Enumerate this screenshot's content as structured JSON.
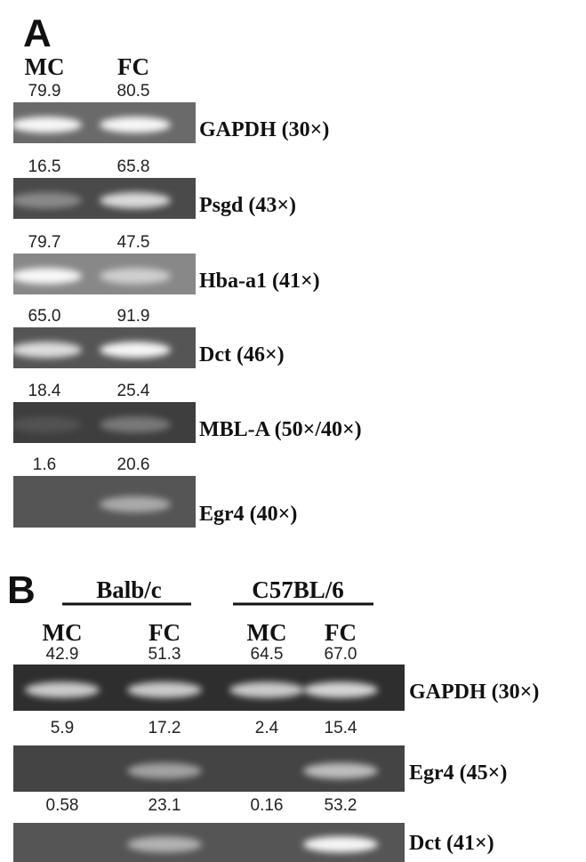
{
  "panel_a": {
    "label": "A",
    "columns": [
      "MC",
      "FC"
    ],
    "rows": [
      {
        "gene": "GAPDH (30×)",
        "values": [
          "79.9",
          "80.5"
        ]
      },
      {
        "gene": "Psgd (43×)",
        "values": [
          "16.5",
          "65.8"
        ]
      },
      {
        "gene": "Hba-a1 (41×)",
        "values": [
          "79.7",
          "47.5"
        ]
      },
      {
        "gene": "Dct (46×)",
        "values": [
          "65.0",
          "91.9"
        ]
      },
      {
        "gene": "MBL-A (50×/40×)",
        "values": [
          "18.4",
          "25.4"
        ]
      },
      {
        "gene": "Egr4 (40×)",
        "values": [
          "1.6",
          "20.6"
        ]
      }
    ]
  },
  "panel_b": {
    "label": "B",
    "groups": [
      "Balb/c",
      "C57BL/6"
    ],
    "columns": [
      "MC",
      "FC",
      "MC",
      "FC"
    ],
    "rows": [
      {
        "gene": "GAPDH (30×)",
        "values": [
          "42.9",
          "51.3",
          "64.5",
          "67.0"
        ]
      },
      {
        "gene": "Egr4 (45×)",
        "values": [
          "5.9",
          "17.2",
          "2.4",
          "15.4"
        ]
      },
      {
        "gene": "Dct (41×)",
        "values": [
          "0.58",
          "23.1",
          "0.16",
          "53.2"
        ]
      }
    ]
  }
}
